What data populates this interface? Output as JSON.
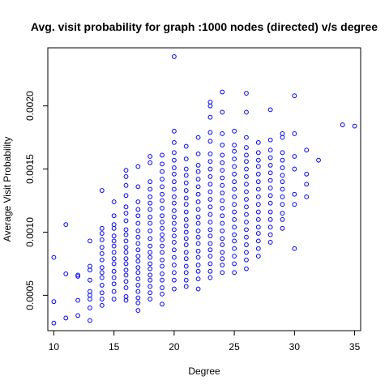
{
  "chart_data": {
    "type": "scatter",
    "title": "Avg. visit probability for graph :1000 nodes (directed) v/s degree",
    "xlabel": "Degree",
    "ylabel": "Average Visit Probability",
    "xlim": [
      9.5,
      35.5
    ],
    "ylim": [
      0.00022,
      0.00246
    ],
    "x_ticks": [
      10,
      15,
      20,
      25,
      30,
      35
    ],
    "y_ticks": [
      0.0005,
      0.001,
      0.0015,
      0.002
    ],
    "y_tick_labels": [
      "0.0005",
      "0.0010",
      "0.0015",
      "0.0020"
    ],
    "marker_color": "#0000ff",
    "marker": "open-circle",
    "grid": false,
    "points": [
      [
        10,
        0.0008
      ],
      [
        10,
        0.00045
      ],
      [
        10,
        0.00028
      ],
      [
        11,
        0.00106
      ],
      [
        11,
        0.00067
      ],
      [
        11,
        0.00032
      ],
      [
        12,
        0.00066
      ],
      [
        12,
        0.00065
      ],
      [
        12,
        0.00046
      ],
      [
        12,
        0.00034
      ],
      [
        13,
        0.00093
      ],
      [
        13,
        0.00073
      ],
      [
        13,
        0.0007
      ],
      [
        13,
        0.00062
      ],
      [
        13,
        0.00053
      ],
      [
        13,
        0.0005
      ],
      [
        13,
        0.00047
      ],
      [
        13,
        0.0004
      ],
      [
        13,
        0.0003
      ],
      [
        14,
        0.00133
      ],
      [
        14,
        0.00103
      ],
      [
        14,
        0.00099
      ],
      [
        14,
        0.00094
      ],
      [
        14,
        0.00088
      ],
      [
        14,
        0.00083
      ],
      [
        14,
        0.00078
      ],
      [
        14,
        0.00072
      ],
      [
        14,
        0.00068
      ],
      [
        14,
        0.00064
      ],
      [
        14,
        0.00058
      ],
      [
        14,
        0.00052
      ],
      [
        14,
        0.00047
      ],
      [
        14,
        0.00042
      ],
      [
        15,
        0.00124
      ],
      [
        15,
        0.00113
      ],
      [
        15,
        0.00106
      ],
      [
        15,
        0.00103
      ],
      [
        15,
        0.00097
      ],
      [
        15,
        0.00093
      ],
      [
        15,
        0.00089
      ],
      [
        15,
        0.00084
      ],
      [
        15,
        0.00079
      ],
      [
        15,
        0.00075
      ],
      [
        15,
        0.00069
      ],
      [
        15,
        0.00064
      ],
      [
        15,
        0.00059
      ],
      [
        15,
        0.00053
      ],
      [
        15,
        0.00047
      ],
      [
        16,
        0.00149
      ],
      [
        16,
        0.00144
      ],
      [
        16,
        0.00137
      ],
      [
        16,
        0.00129
      ],
      [
        16,
        0.0012
      ],
      [
        16,
        0.00115
      ],
      [
        16,
        0.00109
      ],
      [
        16,
        0.00102
      ],
      [
        16,
        0.00098
      ],
      [
        16,
        0.00093
      ],
      [
        16,
        0.00088
      ],
      [
        16,
        0.00084
      ],
      [
        16,
        0.00079
      ],
      [
        16,
        0.00075
      ],
      [
        16,
        0.0007
      ],
      [
        16,
        0.00066
      ],
      [
        16,
        0.00061
      ],
      [
        16,
        0.00056
      ],
      [
        16,
        0.00049
      ],
      [
        16,
        0.00046
      ],
      [
        17,
        0.00152
      ],
      [
        17,
        0.00136
      ],
      [
        17,
        0.00124
      ],
      [
        17,
        0.00118
      ],
      [
        17,
        0.00113
      ],
      [
        17,
        0.00107
      ],
      [
        17,
        0.00101
      ],
      [
        17,
        0.00096
      ],
      [
        17,
        0.00091
      ],
      [
        17,
        0.00086
      ],
      [
        17,
        0.00081
      ],
      [
        17,
        0.00077
      ],
      [
        17,
        0.00072
      ],
      [
        17,
        0.00068
      ],
      [
        17,
        0.00063
      ],
      [
        17,
        0.00058
      ],
      [
        17,
        0.00053
      ],
      [
        17,
        0.00048
      ],
      [
        17,
        0.00044
      ],
      [
        17,
        0.00038
      ],
      [
        18,
        0.0016
      ],
      [
        18,
        0.00155
      ],
      [
        18,
        0.0014
      ],
      [
        18,
        0.00134
      ],
      [
        18,
        0.00128
      ],
      [
        18,
        0.00123
      ],
      [
        18,
        0.00118
      ],
      [
        18,
        0.00112
      ],
      [
        18,
        0.00107
      ],
      [
        18,
        0.00101
      ],
      [
        18,
        0.00095
      ],
      [
        18,
        0.00089
      ],
      [
        18,
        0.00084
      ],
      [
        18,
        0.0008
      ],
      [
        18,
        0.00075
      ],
      [
        18,
        0.00071
      ],
      [
        18,
        0.00066
      ],
      [
        18,
        0.00062
      ],
      [
        18,
        0.00057
      ],
      [
        18,
        0.00052
      ],
      [
        18,
        0.00047
      ],
      [
        19,
        0.00161
      ],
      [
        19,
        0.00154
      ],
      [
        19,
        0.00148
      ],
      [
        19,
        0.00142
      ],
      [
        19,
        0.00136
      ],
      [
        19,
        0.0013
      ],
      [
        19,
        0.00125
      ],
      [
        19,
        0.00119
      ],
      [
        19,
        0.00113
      ],
      [
        19,
        0.00108
      ],
      [
        19,
        0.00103
      ],
      [
        19,
        0.00098
      ],
      [
        19,
        0.00094
      ],
      [
        19,
        0.00089
      ],
      [
        19,
        0.00084
      ],
      [
        19,
        0.00078
      ],
      [
        19,
        0.00073
      ],
      [
        19,
        0.00067
      ],
      [
        19,
        0.00062
      ],
      [
        19,
        0.00056
      ],
      [
        19,
        0.00051
      ],
      [
        19,
        0.00043
      ],
      [
        20,
        0.00239
      ],
      [
        20,
        0.0018
      ],
      [
        20,
        0.00171
      ],
      [
        20,
        0.00163
      ],
      [
        20,
        0.00157
      ],
      [
        20,
        0.00151
      ],
      [
        20,
        0.00146
      ],
      [
        20,
        0.0014
      ],
      [
        20,
        0.00134
      ],
      [
        20,
        0.00128
      ],
      [
        20,
        0.00123
      ],
      [
        20,
        0.00117
      ],
      [
        20,
        0.00112
      ],
      [
        20,
        0.00107
      ],
      [
        20,
        0.00102
      ],
      [
        20,
        0.00097
      ],
      [
        20,
        0.00092
      ],
      [
        20,
        0.00086
      ],
      [
        20,
        0.0008
      ],
      [
        20,
        0.00074
      ],
      [
        20,
        0.00068
      ],
      [
        20,
        0.00062
      ],
      [
        20,
        0.00055
      ],
      [
        21,
        0.00168
      ],
      [
        21,
        0.00158
      ],
      [
        21,
        0.0015
      ],
      [
        21,
        0.00145
      ],
      [
        21,
        0.00139
      ],
      [
        21,
        0.00133
      ],
      [
        21,
        0.00127
      ],
      [
        21,
        0.00122
      ],
      [
        21,
        0.00116
      ],
      [
        21,
        0.0011
      ],
      [
        21,
        0.00105
      ],
      [
        21,
        0.001
      ],
      [
        21,
        0.00095
      ],
      [
        21,
        0.0009
      ],
      [
        21,
        0.00084
      ],
      [
        21,
        0.00079
      ],
      [
        21,
        0.00073
      ],
      [
        21,
        0.00068
      ],
      [
        21,
        0.00062
      ],
      [
        21,
        0.00057
      ],
      [
        22,
        0.00175
      ],
      [
        22,
        0.00162
      ],
      [
        22,
        0.00153
      ],
      [
        22,
        0.00148
      ],
      [
        22,
        0.00142
      ],
      [
        22,
        0.00136
      ],
      [
        22,
        0.0013
      ],
      [
        22,
        0.00124
      ],
      [
        22,
        0.00118
      ],
      [
        22,
        0.00112
      ],
      [
        22,
        0.00107
      ],
      [
        22,
        0.00101
      ],
      [
        22,
        0.00096
      ],
      [
        22,
        0.00091
      ],
      [
        22,
        0.00085
      ],
      [
        22,
        0.0008
      ],
      [
        22,
        0.00074
      ],
      [
        22,
        0.00069
      ],
      [
        22,
        0.00063
      ],
      [
        22,
        0.00055
      ],
      [
        23,
        0.00203
      ],
      [
        23,
        0.002
      ],
      [
        23,
        0.00191
      ],
      [
        23,
        0.00179
      ],
      [
        23,
        0.00172
      ],
      [
        23,
        0.00162
      ],
      [
        23,
        0.00156
      ],
      [
        23,
        0.0015
      ],
      [
        23,
        0.00144
      ],
      [
        23,
        0.00138
      ],
      [
        23,
        0.00132
      ],
      [
        23,
        0.00126
      ],
      [
        23,
        0.0012
      ],
      [
        23,
        0.00114
      ],
      [
        23,
        0.00108
      ],
      [
        23,
        0.00102
      ],
      [
        23,
        0.00097
      ],
      [
        23,
        0.00091
      ],
      [
        23,
        0.00086
      ],
      [
        23,
        0.00081
      ],
      [
        23,
        0.00075
      ],
      [
        23,
        0.00069
      ],
      [
        23,
        0.00064
      ],
      [
        24,
        0.00211
      ],
      [
        24,
        0.00195
      ],
      [
        24,
        0.00178
      ],
      [
        24,
        0.00169
      ],
      [
        24,
        0.00161
      ],
      [
        24,
        0.00155
      ],
      [
        24,
        0.00149
      ],
      [
        24,
        0.00143
      ],
      [
        24,
        0.00137
      ],
      [
        24,
        0.00131
      ],
      [
        24,
        0.00125
      ],
      [
        24,
        0.00119
      ],
      [
        24,
        0.00113
      ],
      [
        24,
        0.00107
      ],
      [
        24,
        0.00101
      ],
      [
        24,
        0.00095
      ],
      [
        24,
        0.0009
      ],
      [
        24,
        0.00084
      ],
      [
        24,
        0.00079
      ],
      [
        24,
        0.00074
      ],
      [
        24,
        0.00068
      ],
      [
        25,
        0.0018
      ],
      [
        25,
        0.00169
      ],
      [
        25,
        0.00164
      ],
      [
        25,
        0.00158
      ],
      [
        25,
        0.00152
      ],
      [
        25,
        0.00146
      ],
      [
        25,
        0.0014
      ],
      [
        25,
        0.00134
      ],
      [
        25,
        0.00128
      ],
      [
        25,
        0.00122
      ],
      [
        25,
        0.00116
      ],
      [
        25,
        0.0011
      ],
      [
        25,
        0.00104
      ],
      [
        25,
        0.00098
      ],
      [
        25,
        0.00093
      ],
      [
        25,
        0.00087
      ],
      [
        25,
        0.00081
      ],
      [
        25,
        0.00075
      ],
      [
        25,
        0.00068
      ],
      [
        26,
        0.0021
      ],
      [
        26,
        0.00195
      ],
      [
        26,
        0.00175
      ],
      [
        26,
        0.00167
      ],
      [
        26,
        0.00161
      ],
      [
        26,
        0.00156
      ],
      [
        26,
        0.0015
      ],
      [
        26,
        0.00144
      ],
      [
        26,
        0.00138
      ],
      [
        26,
        0.00132
      ],
      [
        26,
        0.00126
      ],
      [
        26,
        0.0012
      ],
      [
        26,
        0.00114
      ],
      [
        26,
        0.00108
      ],
      [
        26,
        0.00102
      ],
      [
        26,
        0.00096
      ],
      [
        26,
        0.0009
      ],
      [
        26,
        0.00084
      ],
      [
        26,
        0.00078
      ],
      [
        26,
        0.00071
      ],
      [
        27,
        0.00171
      ],
      [
        27,
        0.00163
      ],
      [
        27,
        0.00157
      ],
      [
        27,
        0.00152
      ],
      [
        27,
        0.00146
      ],
      [
        27,
        0.0014
      ],
      [
        27,
        0.00134
      ],
      [
        27,
        0.00128
      ],
      [
        27,
        0.00122
      ],
      [
        27,
        0.00116
      ],
      [
        27,
        0.0011
      ],
      [
        27,
        0.00104
      ],
      [
        27,
        0.00099
      ],
      [
        27,
        0.00093
      ],
      [
        27,
        0.00087
      ],
      [
        27,
        0.00081
      ],
      [
        28,
        0.00197
      ],
      [
        28,
        0.00173
      ],
      [
        28,
        0.00165
      ],
      [
        28,
        0.00159
      ],
      [
        28,
        0.00153
      ],
      [
        28,
        0.00147
      ],
      [
        28,
        0.00141
      ],
      [
        28,
        0.00135
      ],
      [
        28,
        0.00129
      ],
      [
        28,
        0.00123
      ],
      [
        28,
        0.00116
      ],
      [
        28,
        0.0011
      ],
      [
        28,
        0.00104
      ],
      [
        28,
        0.00098
      ],
      [
        28,
        0.00092
      ],
      [
        29,
        0.00178
      ],
      [
        29,
        0.00175
      ],
      [
        29,
        0.00163
      ],
      [
        29,
        0.00157
      ],
      [
        29,
        0.00151
      ],
      [
        29,
        0.00145
      ],
      [
        29,
        0.0014
      ],
      [
        29,
        0.00134
      ],
      [
        29,
        0.00128
      ],
      [
        29,
        0.00122
      ],
      [
        29,
        0.00115
      ],
      [
        29,
        0.0011
      ],
      [
        29,
        0.00103
      ],
      [
        30,
        0.00208
      ],
      [
        30,
        0.00178
      ],
      [
        30,
        0.0016
      ],
      [
        30,
        0.0015
      ],
      [
        30,
        0.0013
      ],
      [
        30,
        0.00122
      ],
      [
        30,
        0.00087
      ],
      [
        31,
        0.00165
      ],
      [
        31,
        0.00146
      ],
      [
        31,
        0.00138
      ],
      [
        31,
        0.00128
      ],
      [
        32,
        0.00157
      ],
      [
        34,
        0.00185
      ],
      [
        35,
        0.00184
      ]
    ]
  }
}
